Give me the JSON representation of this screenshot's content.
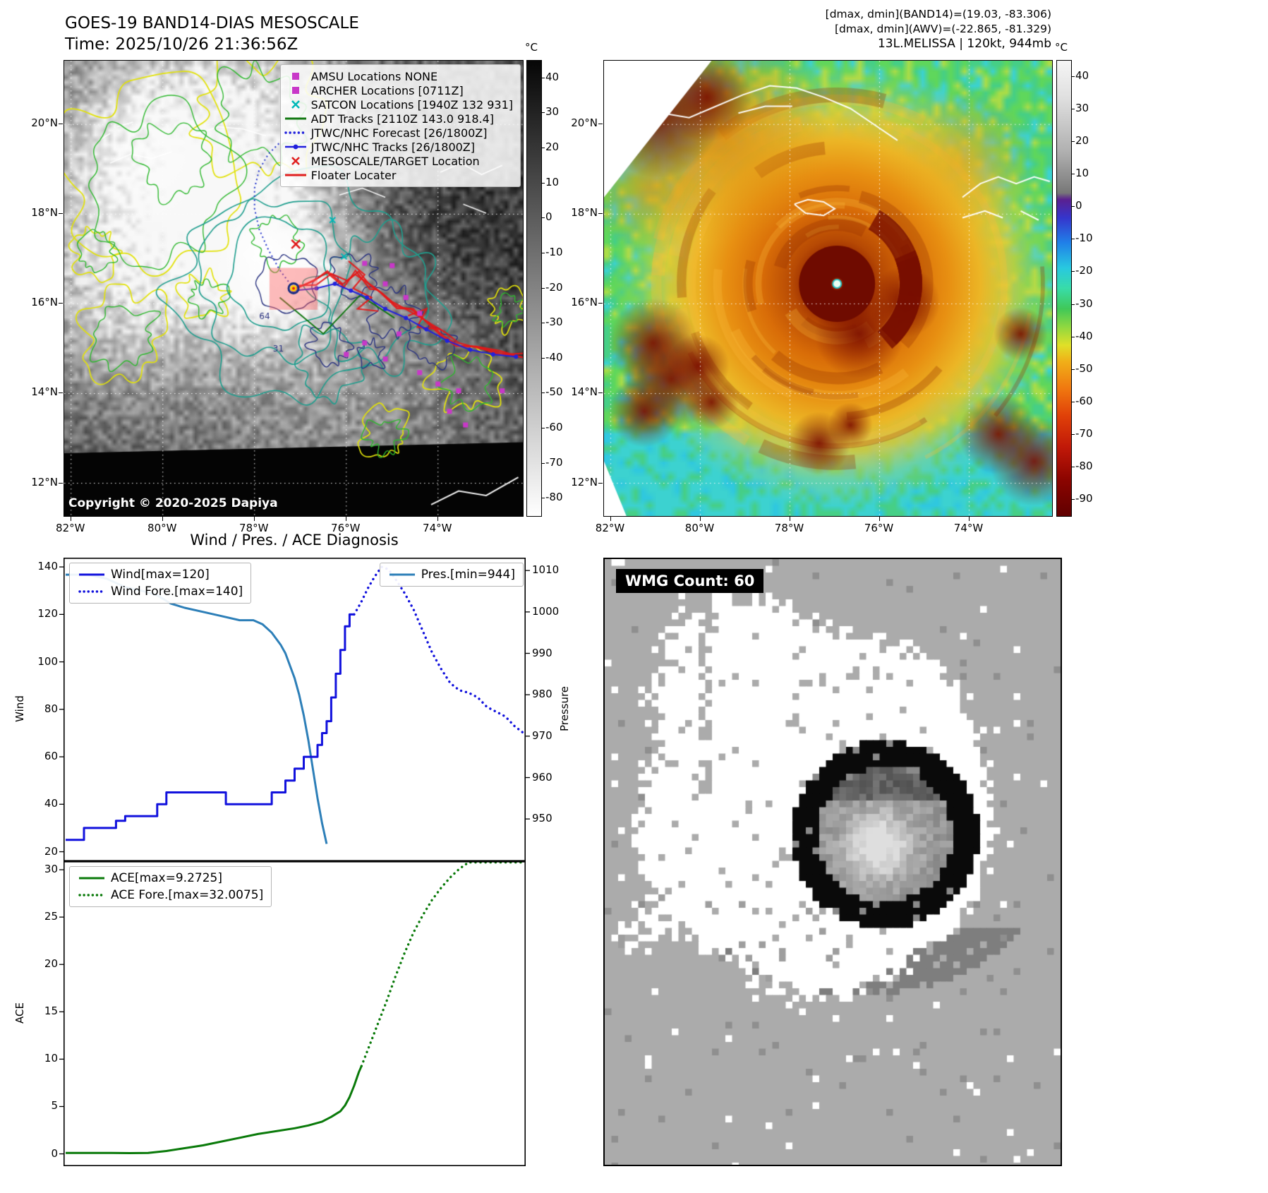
{
  "band14": {
    "title": "GOES-19 BAND14-DIAS MESOSCALE",
    "time": "Time: 2025/10/26 21:36:56Z",
    "copyright": "Copyright © 2020-2025 Dapiya",
    "colorbar_unit": "°C",
    "colorbar_ticks": [
      40,
      30,
      20,
      10,
      0,
      -10,
      -20,
      -30,
      -40,
      -50,
      -60,
      -70,
      -80
    ],
    "colorbar_stops": [
      [
        0,
        "#060606"
      ],
      [
        1,
        "#ffffff"
      ]
    ],
    "lat_labels": [
      "20°N",
      "18°N",
      "16°N",
      "14°N",
      "12°N"
    ],
    "lon_labels": [
      "82°W",
      "80°W",
      "78°W",
      "76°W",
      "74°W"
    ],
    "contour_labels": [
      "64",
      "31"
    ],
    "legend": [
      {
        "label": "AMSU Locations NONE",
        "marker": "square",
        "color": "#c838c8"
      },
      {
        "label": "ARCHER Locations [0711Z]",
        "marker": "square",
        "color": "#c838c8"
      },
      {
        "label": "SATCON Locations [1940Z 132 931]",
        "marker": "x",
        "color": "#00b8b8"
      },
      {
        "label": "ADT Tracks [2110Z 143.0 918.4]",
        "marker": "line",
        "color": "#127812"
      },
      {
        "label": "JTWC/NHC Forecast [26/1800Z]",
        "marker": "dotted",
        "color": "#2020dd"
      },
      {
        "label": "JTWC/NHC Tracks [26/1800Z]",
        "marker": "line-dot",
        "color": "#2020dd"
      },
      {
        "label": "MESOSCALE/TARGET Location",
        "marker": "x",
        "color": "#e02020"
      },
      {
        "label": "Floater Locater",
        "marker": "line",
        "color": "#e02020"
      }
    ]
  },
  "ir": {
    "header_lines": [
      "[dmax, dmin](BAND14)=(19.03, -83.306)",
      "[dmax, dmin](AWV)=(-22.865, -81.329)",
      "13L.MELISSA | 120kt, 944mb"
    ],
    "colorbar_unit": "°C",
    "colorbar_ticks": [
      40,
      30,
      20,
      10,
      0,
      -10,
      -20,
      -30,
      -40,
      -50,
      -60,
      -70,
      -80,
      -90
    ],
    "colorbar_stops": [
      [
        0.0,
        "#f5f5f5"
      ],
      [
        0.08,
        "#e0e0e0"
      ],
      [
        0.2,
        "#b0b0b0"
      ],
      [
        0.29,
        "#787878"
      ],
      [
        0.305,
        "#5a2090"
      ],
      [
        0.345,
        "#3535cc"
      ],
      [
        0.4,
        "#2080e8"
      ],
      [
        0.455,
        "#28c8e0"
      ],
      [
        0.5,
        "#38dca8"
      ],
      [
        0.545,
        "#40c858"
      ],
      [
        0.585,
        "#90d840"
      ],
      [
        0.625,
        "#e0e028"
      ],
      [
        0.66,
        "#f0b018"
      ],
      [
        0.72,
        "#f07810"
      ],
      [
        0.78,
        "#e04008"
      ],
      [
        0.85,
        "#c01808"
      ],
      [
        0.92,
        "#8c0400"
      ],
      [
        1.0,
        "#600000"
      ]
    ],
    "lat_labels": [
      "20°N",
      "18°N",
      "16°N",
      "14°N",
      "12°N"
    ],
    "lon_labels": [
      "82°W",
      "80°W",
      "78°W",
      "76°W",
      "74°W"
    ]
  },
  "wmg": {
    "count_label": "WMG Count: 60"
  },
  "chart_data": [
    {
      "type": "line",
      "title": "Wind / Pres. / ACE Diagnosis",
      "ylabel": "Wind",
      "ylabel_right": "Pressure",
      "xlim": [
        0,
        100
      ],
      "ylim": [
        16,
        143.9
      ],
      "yticks": [
        20,
        40,
        60,
        80,
        100,
        120,
        140
      ],
      "ylim_right": [
        939.8,
        1013.1
      ],
      "yticks_right": [
        950,
        960,
        970,
        980,
        990,
        1000,
        1010
      ],
      "series": [
        {
          "name": "Wind[max=120]",
          "axis": "left",
          "style": "solid",
          "color": "#1212dd",
          "points": [
            [
              0,
              25
            ],
            [
              4,
              25
            ],
            [
              4,
              30
            ],
            [
              11,
              30
            ],
            [
              11,
              33
            ],
            [
              13,
              33
            ],
            [
              13,
              35
            ],
            [
              20,
              35
            ],
            [
              20,
              40
            ],
            [
              22,
              40
            ],
            [
              22,
              45
            ],
            [
              35,
              45
            ],
            [
              35,
              40
            ],
            [
              45,
              40
            ],
            [
              45,
              45
            ],
            [
              48,
              45
            ],
            [
              48,
              50
            ],
            [
              50,
              50
            ],
            [
              50,
              55
            ],
            [
              52,
              55
            ],
            [
              52,
              60
            ],
            [
              55,
              60
            ],
            [
              55,
              65
            ],
            [
              56,
              65
            ],
            [
              56,
              70
            ],
            [
              57,
              70
            ],
            [
              57,
              75
            ],
            [
              58,
              75
            ],
            [
              58,
              85
            ],
            [
              59,
              85
            ],
            [
              59,
              95
            ],
            [
              60,
              95
            ],
            [
              60,
              105
            ],
            [
              61,
              105
            ],
            [
              61,
              115
            ],
            [
              62,
              115
            ],
            [
              62,
              120
            ],
            [
              63,
              120
            ]
          ]
        },
        {
          "name": "Wind Fore.[max=140]",
          "axis": "left",
          "style": "dotted",
          "color": "#1212dd",
          "points": [
            [
              63,
              120
            ],
            [
              64.5,
              125
            ],
            [
              66,
              131
            ],
            [
              67.5,
              136
            ],
            [
              69,
              140
            ],
            [
              70.5,
              139
            ],
            [
              72,
              135
            ],
            [
              74,
              129
            ],
            [
              76,
              122
            ],
            [
              78,
              113
            ],
            [
              80,
              104
            ],
            [
              82,
              97
            ],
            [
              84,
              91
            ],
            [
              86,
              88
            ],
            [
              88,
              87
            ],
            [
              90,
              85
            ],
            [
              92,
              81
            ],
            [
              94,
              79
            ],
            [
              96,
              77
            ],
            [
              98,
              73
            ],
            [
              100,
              70
            ]
          ]
        },
        {
          "name": "Pres.[min=944]",
          "axis": "right",
          "style": "solid",
          "color": "#2d7fb8",
          "points": [
            [
              0,
              1009
            ],
            [
              5,
              1009
            ],
            [
              9,
              1008
            ],
            [
              13,
              1006
            ],
            [
              17,
              1005
            ],
            [
              20,
              1004
            ],
            [
              23,
              1002
            ],
            [
              26,
              1001
            ],
            [
              30,
              1000
            ],
            [
              34,
              999
            ],
            [
              38,
              998
            ],
            [
              41,
              998
            ],
            [
              43,
              997
            ],
            [
              45,
              995
            ],
            [
              47,
              992
            ],
            [
              48,
              990
            ],
            [
              49,
              987
            ],
            [
              50,
              984
            ],
            [
              51,
              980
            ],
            [
              52,
              975
            ],
            [
              53,
              969
            ],
            [
              54,
              962
            ],
            [
              55,
              955
            ],
            [
              56,
              949
            ],
            [
              57,
              944
            ]
          ]
        }
      ]
    },
    {
      "type": "line",
      "ylabel": "ACE",
      "xlim": [
        0,
        100
      ],
      "ylim": [
        -1.3,
        30.9
      ],
      "yticks": [
        0,
        5,
        10,
        15,
        20,
        25,
        30
      ],
      "series": [
        {
          "name": "ACE[max=9.2725]",
          "axis": "left",
          "style": "solid",
          "color": "#0a7a0a",
          "points": [
            [
              0,
              0.1
            ],
            [
              10,
              0.1
            ],
            [
              14,
              0.08
            ],
            [
              18,
              0.1
            ],
            [
              22,
              0.3
            ],
            [
              26,
              0.6
            ],
            [
              30,
              0.9
            ],
            [
              34,
              1.3
            ],
            [
              38,
              1.7
            ],
            [
              42,
              2.1
            ],
            [
              46,
              2.4
            ],
            [
              50,
              2.7
            ],
            [
              53,
              3.0
            ],
            [
              56,
              3.4
            ],
            [
              58,
              3.9
            ],
            [
              60,
              4.5
            ],
            [
              61,
              5.1
            ],
            [
              62,
              6.0
            ],
            [
              63,
              7.2
            ],
            [
              64,
              8.6
            ],
            [
              64.6,
              9.27
            ]
          ]
        },
        {
          "name": "ACE Fore.[max=32.0075]",
          "axis": "left",
          "style": "dotted",
          "color": "#0a7a0a",
          "points": [
            [
              64.6,
              9.27
            ],
            [
              66,
              11
            ],
            [
              68,
              13.5
            ],
            [
              70,
              16
            ],
            [
              72,
              18.7
            ],
            [
              74,
              21.2
            ],
            [
              76,
              23.4
            ],
            [
              78,
              25.2
            ],
            [
              80,
              26.8
            ],
            [
              82,
              28.1
            ],
            [
              84,
              29.2
            ],
            [
              86,
              30.1
            ],
            [
              88,
              30.9
            ],
            [
              90,
              31.4
            ],
            [
              93,
              31.8
            ],
            [
              96,
              32
            ],
            [
              100,
              32.01
            ]
          ]
        }
      ]
    }
  ]
}
